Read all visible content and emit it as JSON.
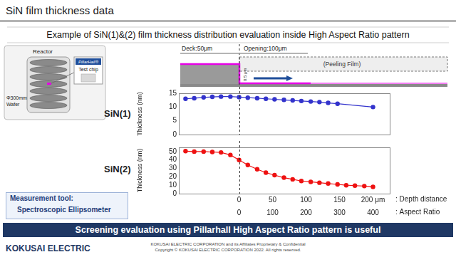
{
  "title": "SiN film thickness data",
  "subtitle": "Example of SiN(1)&(2) film thickness distribution evaluation inside High Aspect Ratio pattern",
  "reactor": {
    "label": "Reactor",
    "chip_brand": "PillarHall®",
    "chip_label": "Test chip",
    "wafer": [
      "Φ300mm",
      "Wafer"
    ]
  },
  "schematic": {
    "deck": "Deck:50μm",
    "opening": "Opening:100μm",
    "gap": "0.5 μm",
    "film": "(Peeling Film)"
  },
  "measurement": {
    "label": "Measurement tool:",
    "tool": "Spectroscopic Ellipsometer"
  },
  "banner": "Screening evaluation using Pillarhall High Aspect Ratio pattern is useful",
  "footer": {
    "logo": "KOKUSAI ELECTRIC",
    "lines": [
      "KOKUSAI ELECTRIC CORPORATION and its Affiliates Proprietary & Confidential",
      "Copyright © KOKUSAI ELECTRIC CORPORATION 2022. All rights reserved."
    ]
  },
  "chart_data": [
    {
      "type": "line",
      "title": "SiN(1)",
      "ylabel": "Thickness (nm)",
      "x": [
        -80,
        -67,
        -53,
        -40,
        -27,
        -13,
        0,
        13,
        27,
        40,
        53,
        67,
        80,
        93,
        107,
        120,
        133,
        147,
        200
      ],
      "values": [
        13,
        13.2,
        13.5,
        13.7,
        13.8,
        13.8,
        13.6,
        13.4,
        13.2,
        13,
        12.8,
        12.6,
        12.4,
        12.2,
        12,
        11.8,
        11.5,
        11.2,
        10
      ],
      "color": "#3333cc",
      "marker": "circle",
      "line_style": "solid",
      "xlim": [
        -90,
        225
      ],
      "ylim": [
        0,
        15
      ],
      "yticks": [
        0,
        5,
        10,
        15
      ],
      "grid": false,
      "tick_labels": "y"
    },
    {
      "type": "line",
      "title": "SiN(2)",
      "ylabel": "Thickness (nm)",
      "x": [
        -80,
        -67,
        -53,
        -40,
        -27,
        -13,
        0,
        13,
        27,
        40,
        53,
        67,
        80,
        93,
        107,
        120,
        133,
        147,
        160,
        173,
        187,
        200
      ],
      "values": [
        50.5,
        50,
        50,
        49.5,
        49,
        46,
        40,
        34,
        29,
        25,
        22,
        19,
        17,
        15,
        14,
        13,
        12,
        11,
        10,
        9.5,
        9,
        8
      ],
      "color": "#ee1111",
      "marker": "circle",
      "line_style": "solid",
      "xlim": [
        -90,
        225
      ],
      "xticks": [
        0,
        50,
        100,
        150,
        {
          "value": 200,
          "label": "200 μm"
        }
      ],
      "xlabel": ": Depth distance",
      "x2lim": [
        -180,
        450
      ],
      "x2ticks": [
        0,
        100,
        200,
        300,
        400
      ],
      "x2label": ": Aspect Ratio",
      "ylim": [
        0,
        55
      ],
      "yticks": [
        0,
        10,
        20,
        30,
        40,
        50
      ],
      "grid": false
    }
  ]
}
